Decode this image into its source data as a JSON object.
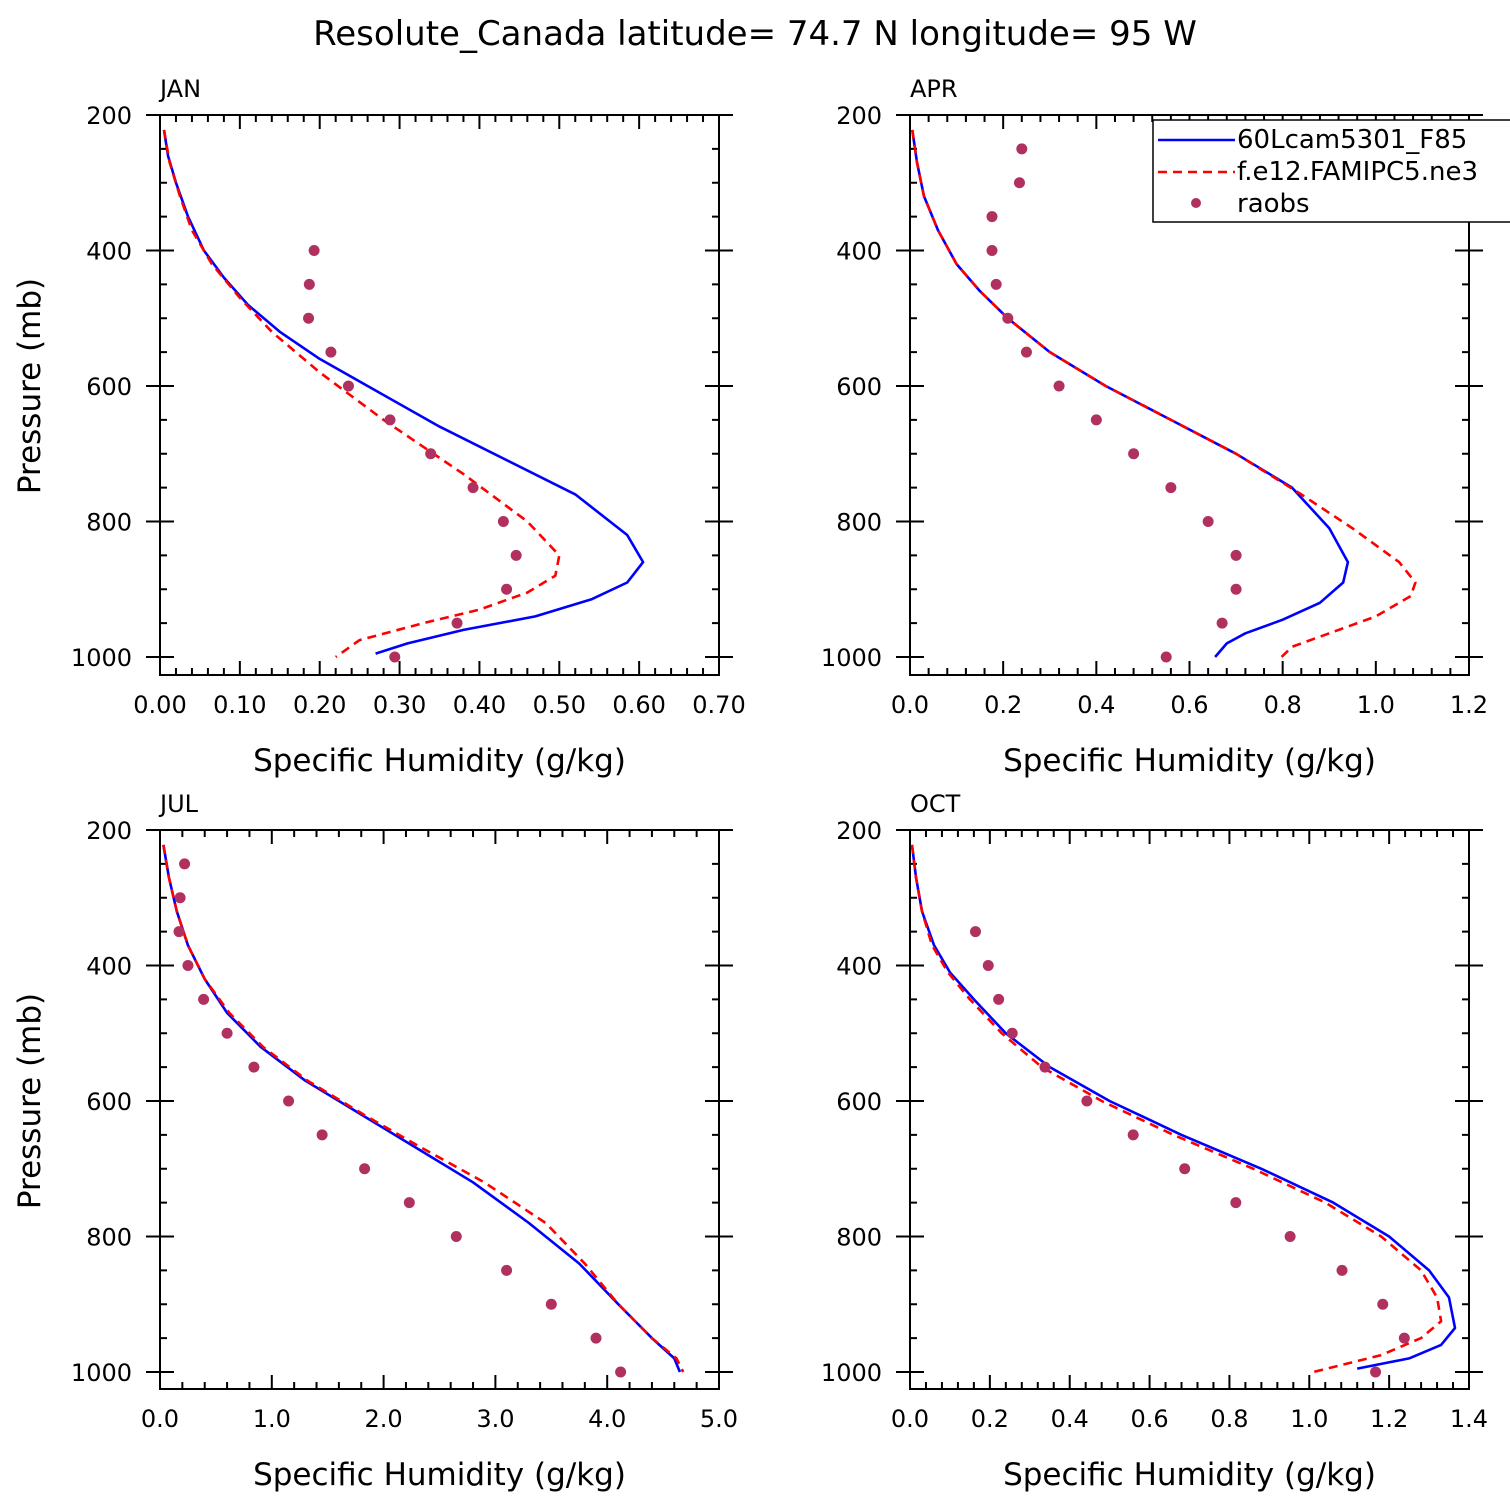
{
  "title": "Resolute_Canada  latitude= 74.7 N longitude= 95 W",
  "legend": {
    "entries": [
      {
        "label": "60Lcam5301_F85",
        "color": "#0000ff",
        "style": "solid"
      },
      {
        "label": "f.e12.FAMIPC5.ne3",
        "color": "#ff0000",
        "style": "dashed"
      },
      {
        "label": "raobs",
        "color": "#b03060",
        "style": "dots"
      }
    ]
  },
  "chart_data": [
    {
      "type": "line",
      "panel": "JAN",
      "xlabel": "Specific Humidity (g/kg)",
      "ylabel": "Pressure (mb)",
      "xlim": [
        0,
        0.7
      ],
      "ylim": [
        200,
        1000
      ],
      "xticks": [
        "0.00",
        "0.10",
        "0.20",
        "0.30",
        "0.40",
        "0.50",
        "0.60",
        "0.70"
      ],
      "yticks": [
        "200",
        "400",
        "600",
        "800",
        "1000"
      ],
      "series": [
        {
          "name": "60Lcam5301_F85",
          "color": "#0000ff",
          "style": "solid",
          "x": [
            0.005,
            0.01,
            0.02,
            0.035,
            0.055,
            0.08,
            0.11,
            0.15,
            0.2,
            0.26,
            0.35,
            0.52,
            0.585,
            0.605,
            0.585,
            0.54,
            0.47,
            0.38,
            0.31,
            0.27
          ],
          "y": [
            222,
            260,
            300,
            350,
            400,
            440,
            480,
            520,
            560,
            600,
            660,
            760,
            820,
            860,
            890,
            915,
            940,
            960,
            980,
            995
          ]
        },
        {
          "name": "f.e12.FAMIPC5.ne3",
          "color": "#ff0000",
          "style": "dashed",
          "x": [
            0.005,
            0.012,
            0.025,
            0.04,
            0.065,
            0.1,
            0.14,
            0.2,
            0.28,
            0.38,
            0.46,
            0.5,
            0.495,
            0.46,
            0.4,
            0.33,
            0.25,
            0.22
          ],
          "y": [
            222,
            270,
            320,
            370,
            420,
            470,
            520,
            580,
            650,
            730,
            800,
            850,
            880,
            905,
            930,
            950,
            975,
            1000
          ]
        },
        {
          "name": "raobs",
          "color": "#b03060",
          "style": "dots",
          "x": [
            0.193,
            0.187,
            0.186,
            0.214,
            0.236,
            0.288,
            0.339,
            0.392,
            0.43,
            0.446,
            0.434,
            0.372,
            0.294
          ],
          "y": [
            400,
            450,
            500,
            550,
            600,
            650,
            700,
            750,
            800,
            850,
            900,
            950,
            1000
          ]
        }
      ]
    },
    {
      "type": "line",
      "panel": "APR",
      "xlabel": "Specific Humidity (g/kg)",
      "ylabel": "",
      "xlim": [
        0,
        1.2
      ],
      "ylim": [
        200,
        1000
      ],
      "xticks": [
        "0.0",
        "0.2",
        "0.4",
        "0.6",
        "0.8",
        "1.0",
        "1.2"
      ],
      "yticks": [
        "200",
        "400",
        "600",
        "800",
        "1000"
      ],
      "series": [
        {
          "name": "60Lcam5301_F85",
          "color": "#0000ff",
          "style": "solid",
          "x": [
            0.005,
            0.015,
            0.03,
            0.06,
            0.1,
            0.15,
            0.21,
            0.3,
            0.42,
            0.56,
            0.7,
            0.82,
            0.9,
            0.94,
            0.93,
            0.88,
            0.8,
            0.72,
            0.68,
            0.655
          ],
          "y": [
            222,
            270,
            320,
            370,
            420,
            460,
            500,
            550,
            600,
            650,
            700,
            750,
            810,
            860,
            890,
            920,
            945,
            965,
            980,
            1000
          ]
        },
        {
          "name": "f.e12.FAMIPC5.ne3",
          "color": "#ff0000",
          "style": "dashed",
          "x": [
            0.005,
            0.015,
            0.03,
            0.06,
            0.1,
            0.15,
            0.21,
            0.3,
            0.42,
            0.56,
            0.7,
            0.84,
            0.95,
            1.05,
            1.085,
            1.075,
            1.0,
            0.9,
            0.82,
            0.79
          ],
          "y": [
            222,
            270,
            320,
            370,
            420,
            460,
            500,
            550,
            600,
            650,
            700,
            760,
            810,
            860,
            890,
            910,
            940,
            965,
            985,
            1005
          ]
        },
        {
          "name": "raobs",
          "color": "#b03060",
          "style": "dots",
          "x": [
            0.24,
            0.235,
            0.176,
            0.176,
            0.185,
            0.21,
            0.25,
            0.32,
            0.4,
            0.48,
            0.56,
            0.64,
            0.7,
            0.7,
            0.67,
            0.55
          ],
          "y": [
            250,
            300,
            350,
            400,
            450,
            500,
            550,
            600,
            650,
            700,
            750,
            800,
            850,
            900,
            950,
            1000
          ]
        }
      ]
    },
    {
      "type": "line",
      "panel": "JUL",
      "xlabel": "Specific Humidity (g/kg)",
      "ylabel": "Pressure (mb)",
      "xlim": [
        0,
        5
      ],
      "ylim": [
        200,
        1000
      ],
      "xticks": [
        "0.0",
        "1.0",
        "2.0",
        "3.0",
        "4.0",
        "5.0"
      ],
      "yticks": [
        "200",
        "400",
        "600",
        "800",
        "1000"
      ],
      "series": [
        {
          "name": "60Lcam5301_F85",
          "color": "#0000ff",
          "style": "solid",
          "x": [
            0.03,
            0.08,
            0.15,
            0.25,
            0.4,
            0.6,
            0.9,
            1.3,
            1.8,
            2.3,
            2.8,
            3.3,
            3.75,
            4.1,
            4.4,
            4.6,
            4.65
          ],
          "y": [
            222,
            270,
            320,
            370,
            420,
            470,
            520,
            570,
            620,
            670,
            720,
            780,
            840,
            900,
            950,
            980,
            1000
          ]
        },
        {
          "name": "f.e12.FAMIPC5.ne3",
          "color": "#ff0000",
          "style": "dashed",
          "x": [
            0.03,
            0.08,
            0.15,
            0.25,
            0.4,
            0.62,
            0.92,
            1.32,
            1.82,
            2.35,
            2.9,
            3.45,
            3.8,
            4.1,
            4.4,
            4.62,
            4.68
          ],
          "y": [
            222,
            270,
            320,
            370,
            420,
            470,
            520,
            570,
            620,
            670,
            720,
            780,
            840,
            900,
            950,
            980,
            1000
          ]
        },
        {
          "name": "raobs",
          "color": "#b03060",
          "style": "dots",
          "x": [
            0.22,
            0.18,
            0.17,
            0.25,
            0.39,
            0.6,
            0.84,
            1.15,
            1.45,
            1.83,
            2.23,
            2.65,
            3.1,
            3.5,
            3.9,
            4.12
          ],
          "y": [
            250,
            300,
            350,
            400,
            450,
            500,
            550,
            600,
            650,
            700,
            750,
            800,
            850,
            900,
            950,
            1000
          ]
        }
      ]
    },
    {
      "type": "line",
      "panel": "OCT",
      "xlabel": "Specific Humidity (g/kg)",
      "ylabel": "",
      "xlim": [
        0,
        1.4
      ],
      "ylim": [
        200,
        1000
      ],
      "xticks": [
        "0.0",
        "0.2",
        "0.4",
        "0.6",
        "0.8",
        "1.0",
        "1.2",
        "1.4"
      ],
      "yticks": [
        "200",
        "400",
        "600",
        "800",
        "1000"
      ],
      "series": [
        {
          "name": "60Lcam5301_F85",
          "color": "#0000ff",
          "style": "solid",
          "x": [
            0.005,
            0.015,
            0.03,
            0.06,
            0.1,
            0.16,
            0.24,
            0.35,
            0.5,
            0.68,
            0.88,
            1.06,
            1.2,
            1.3,
            1.35,
            1.365,
            1.33,
            1.25,
            1.12
          ],
          "y": [
            222,
            270,
            320,
            370,
            410,
            450,
            500,
            550,
            600,
            650,
            700,
            750,
            800,
            850,
            890,
            935,
            960,
            980,
            995
          ]
        },
        {
          "name": "f.e12.FAMIPC5.ne3",
          "color": "#ff0000",
          "style": "dashed",
          "x": [
            0.005,
            0.015,
            0.03,
            0.055,
            0.095,
            0.15,
            0.23,
            0.33,
            0.48,
            0.66,
            0.86,
            1.04,
            1.18,
            1.28,
            1.32,
            1.33,
            1.28,
            1.18,
            1.01
          ],
          "y": [
            222,
            270,
            320,
            370,
            410,
            450,
            500,
            550,
            600,
            650,
            700,
            750,
            800,
            850,
            890,
            925,
            950,
            975,
            1000
          ]
        },
        {
          "name": "raobs",
          "color": "#b03060",
          "style": "dots",
          "x": [
            0.164,
            0.196,
            0.222,
            0.256,
            0.338,
            0.443,
            0.559,
            0.688,
            0.816,
            0.952,
            1.082,
            1.184,
            1.238,
            1.166
          ],
          "y": [
            350,
            400,
            450,
            500,
            550,
            600,
            650,
            700,
            750,
            800,
            850,
            900,
            950,
            1000
          ]
        }
      ]
    }
  ]
}
